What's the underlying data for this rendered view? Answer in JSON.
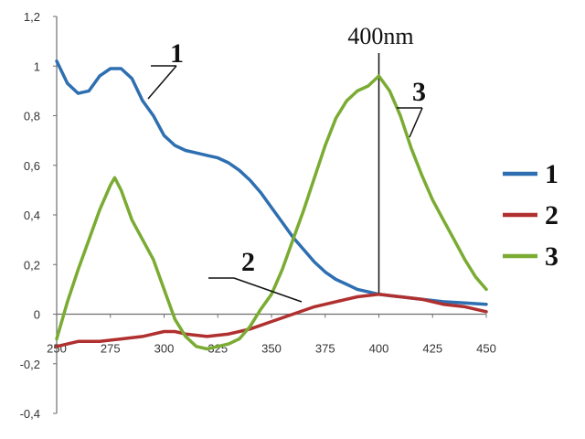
{
  "chart_data": {
    "type": "line",
    "title": "",
    "xlabel": "",
    "ylabel": "",
    "xlim": [
      250,
      450
    ],
    "ylim": [
      -0.4,
      1.2
    ],
    "x_ticks": [
      250,
      275,
      300,
      325,
      350,
      375,
      400,
      425,
      450
    ],
    "x_tick_labels": [
      "250",
      "275",
      "300",
      "325",
      "350",
      "375",
      "400",
      "425",
      "450"
    ],
    "y_ticks": [
      -0.4,
      -0.2,
      0,
      0.2,
      0.4,
      0.6,
      0.8,
      1,
      1.2
    ],
    "y_tick_labels": [
      "-0,4",
      "-0,2",
      "0",
      "0,2",
      "0,4",
      "0,6",
      "0,8",
      "1",
      "1,2"
    ],
    "grid": false,
    "legend_position": "right",
    "marker": {
      "label": "400nm",
      "x": 400
    },
    "series": [
      {
        "name": "1",
        "color": "#2e6fb2",
        "x": [
          250,
          255,
          260,
          265,
          270,
          275,
          280,
          285,
          290,
          295,
          300,
          305,
          310,
          315,
          320,
          325,
          330,
          335,
          340,
          345,
          350,
          355,
          360,
          365,
          370,
          375,
          380,
          385,
          390,
          395,
          400,
          405,
          410,
          420,
          430,
          440,
          450
        ],
        "values": [
          1.02,
          0.93,
          0.89,
          0.9,
          0.96,
          0.99,
          0.99,
          0.95,
          0.86,
          0.8,
          0.72,
          0.68,
          0.66,
          0.65,
          0.64,
          0.63,
          0.61,
          0.58,
          0.54,
          0.49,
          0.43,
          0.37,
          0.31,
          0.26,
          0.21,
          0.17,
          0.14,
          0.12,
          0.1,
          0.09,
          0.08,
          0.075,
          0.07,
          0.06,
          0.05,
          0.045,
          0.04
        ]
      },
      {
        "name": "2",
        "color": "#b0302f",
        "x": [
          250,
          260,
          270,
          280,
          290,
          295,
          300,
          305,
          310,
          320,
          330,
          340,
          350,
          360,
          370,
          380,
          390,
          400,
          410,
          420,
          430,
          440,
          450
        ],
        "values": [
          -0.13,
          -0.11,
          -0.11,
          -0.1,
          -0.09,
          -0.08,
          -0.07,
          -0.07,
          -0.08,
          -0.09,
          -0.08,
          -0.06,
          -0.03,
          0.0,
          0.03,
          0.05,
          0.07,
          0.08,
          0.07,
          0.06,
          0.04,
          0.03,
          0.01
        ]
      },
      {
        "name": "3",
        "color": "#7aab32",
        "x": [
          250,
          255,
          260,
          265,
          270,
          275,
          277,
          280,
          285,
          290,
          295,
          300,
          305,
          310,
          315,
          320,
          325,
          330,
          335,
          340,
          345,
          350,
          355,
          360,
          365,
          370,
          375,
          380,
          385,
          390,
          395,
          400,
          405,
          410,
          415,
          420,
          425,
          430,
          435,
          440,
          445,
          450
        ],
        "values": [
          -0.1,
          0.05,
          0.18,
          0.3,
          0.42,
          0.52,
          0.55,
          0.5,
          0.38,
          0.3,
          0.22,
          0.1,
          -0.02,
          -0.09,
          -0.13,
          -0.14,
          -0.13,
          -0.12,
          -0.1,
          -0.05,
          0.02,
          0.08,
          0.18,
          0.3,
          0.42,
          0.55,
          0.68,
          0.79,
          0.86,
          0.9,
          0.92,
          0.96,
          0.9,
          0.8,
          0.67,
          0.56,
          0.46,
          0.38,
          0.3,
          0.22,
          0.15,
          0.1
        ]
      }
    ],
    "annotations": [
      {
        "text": "1",
        "series": "1",
        "x": 290
      },
      {
        "text": "2",
        "series": "2",
        "x": 372
      },
      {
        "text": "3",
        "series": "3",
        "x": 418
      }
    ]
  }
}
